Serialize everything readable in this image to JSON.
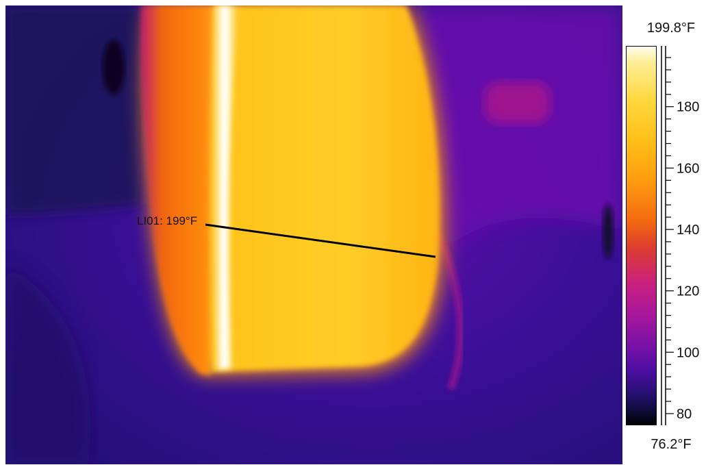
{
  "image": {
    "subject": "thermal-camera-view",
    "palette": [
      "#000000",
      "#2d0f88",
      "#6a10a8",
      "#c82080",
      "#f36a10",
      "#ffbf18",
      "#ffef9a",
      "#ffffff"
    ]
  },
  "measurement": {
    "label": "LI01: 199°F"
  },
  "scale": {
    "max_label": "199.8°F",
    "min_label": "76.2°F",
    "max_value": 199.8,
    "min_value": 76.2,
    "ticks": [
      {
        "value": 180,
        "label": "180"
      },
      {
        "value": 160,
        "label": "160"
      },
      {
        "value": 140,
        "label": "140"
      },
      {
        "value": 120,
        "label": "120"
      },
      {
        "value": 100,
        "label": "100"
      },
      {
        "value": 80,
        "label": "80"
      }
    ],
    "minor_step": 4
  }
}
